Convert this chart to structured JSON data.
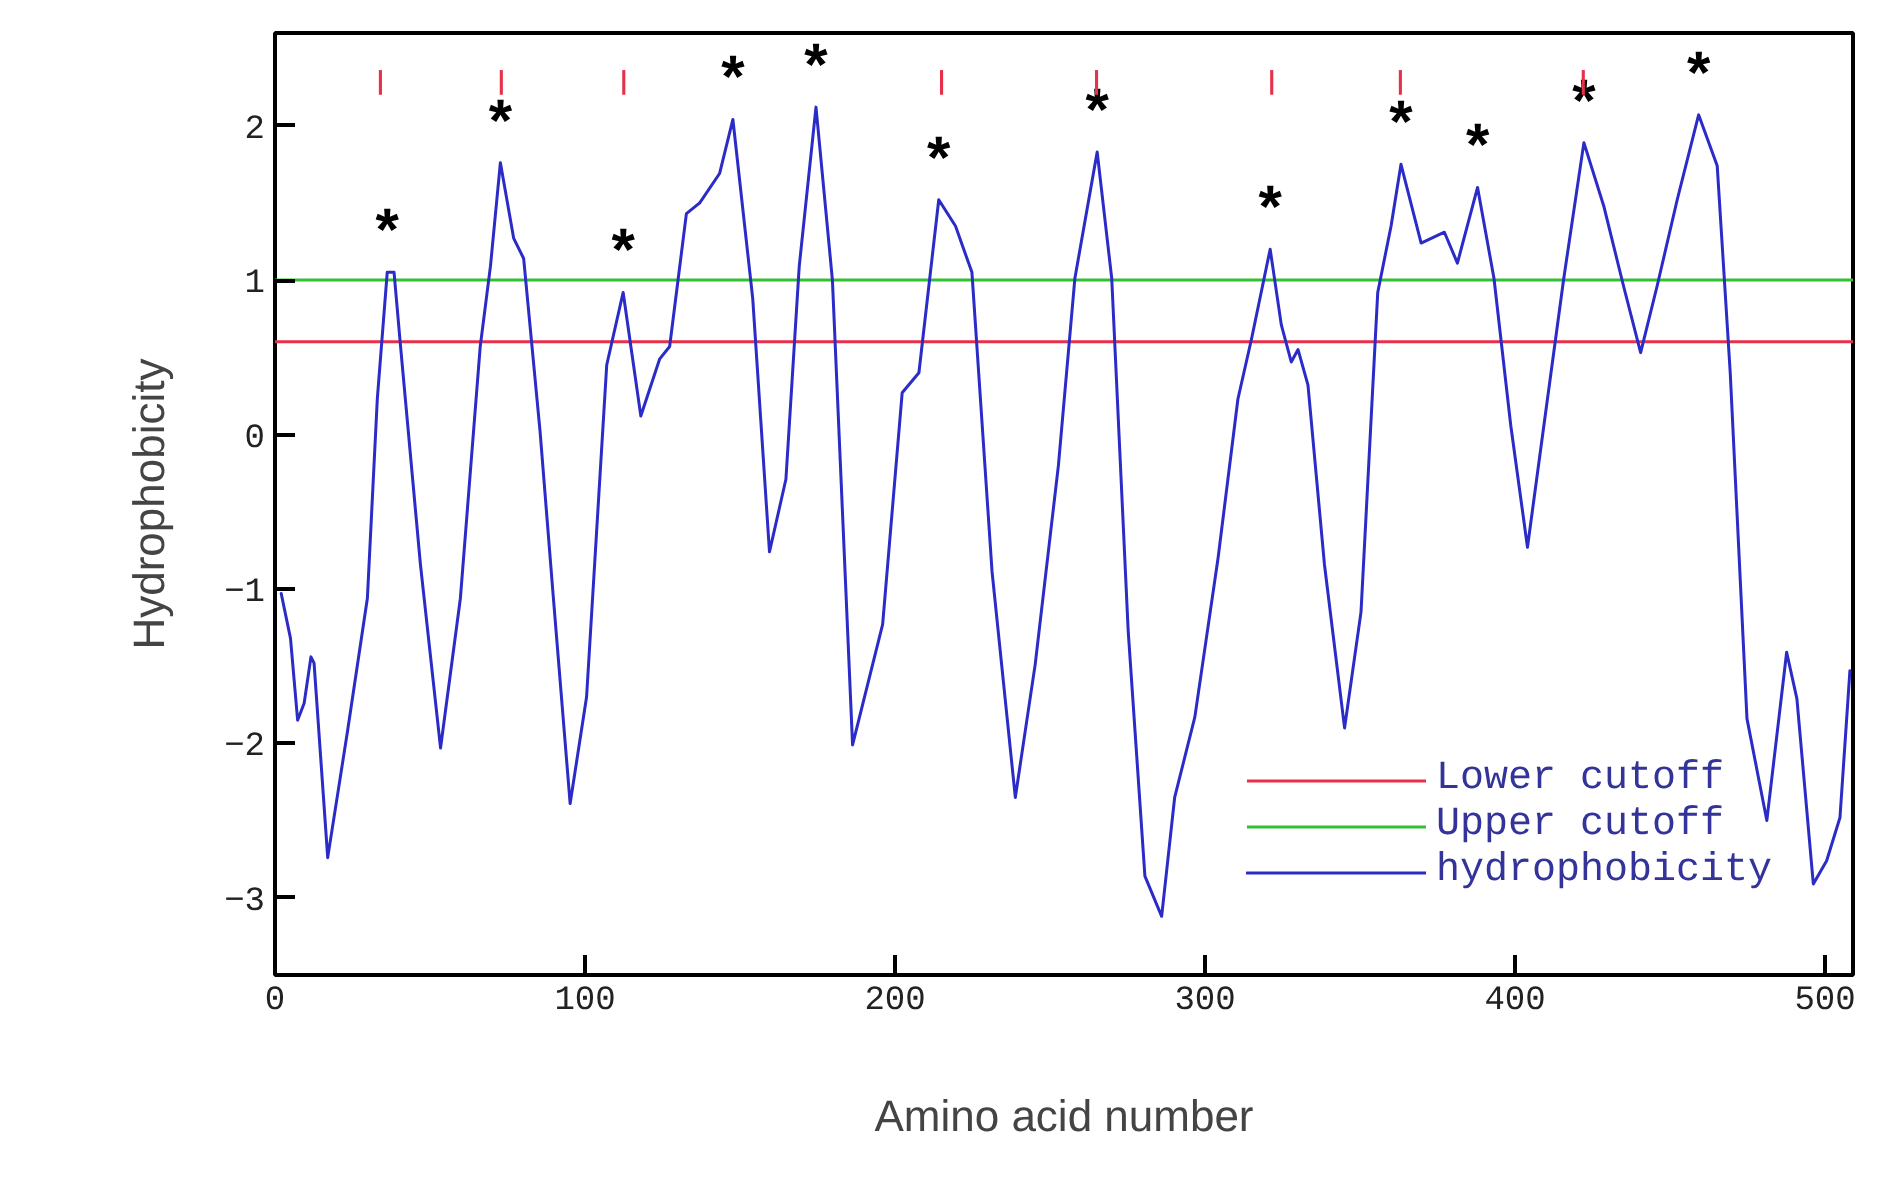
{
  "chart_data": {
    "type": "line",
    "xlabel": "Amino acid number",
    "ylabel": "Hydrophobicity",
    "xlim": [
      0,
      509
    ],
    "ylim": [
      -3.5,
      2.6
    ],
    "xticks": [
      0,
      100,
      200,
      300,
      400,
      500
    ],
    "yticks": [
      -3,
      -2,
      -1,
      0,
      1,
      2
    ],
    "grid": false,
    "legend": "bottom right",
    "line_style": "solid",
    "series": [
      {
        "name": "hydrophobicity",
        "color": "#2b2bc8",
        "x": [
          2,
          5,
          7.3,
          9.4,
          11.6,
          12.6,
          17,
          23.4,
          29.8,
          33,
          36.2,
          38.4,
          40.5,
          46.9,
          53.4,
          59.8,
          66.2,
          69.5,
          72.7,
          77,
          80.2,
          85.5,
          89.8,
          95.2,
          100.5,
          107,
          112.3,
          118,
          124.1,
          127.3,
          132.7,
          137,
          143.4,
          147.7,
          154.1,
          159.5,
          164.8,
          169.1,
          174.5,
          179.8,
          186.3,
          196,
          202.3,
          207.7,
          214.1,
          219.5,
          224.8,
          231.3,
          238.8,
          245.2,
          252.7,
          258,
          265.2,
          269.9,
          275.2,
          280.6,
          286,
          290.2,
          296.7,
          304.2,
          310.6,
          315,
          321,
          324.6,
          327.8,
          330,
          333.2,
          338.5,
          345,
          350.3,
          355.7,
          360,
          363.2,
          369.7,
          377.2,
          381.4,
          387.9,
          393.2,
          398.6,
          404,
          409.3,
          415.7,
          422.2,
          428.6,
          435,
          440.5,
          445.8,
          452.3,
          459.2,
          465.2,
          469.4,
          474.8,
          481.2,
          487.6,
          490.9,
          496.2,
          500.5,
          504.8,
          508
        ],
        "values": [
          -1.03,
          -1.32,
          -1.85,
          -1.74,
          -1.44,
          -1.48,
          -2.74,
          -1.92,
          -1.06,
          0.23,
          1.05,
          1.05,
          0.57,
          -0.84,
          -2.03,
          -1.06,
          0.57,
          1.09,
          1.76,
          1.27,
          1.14,
          0.02,
          -1.06,
          -2.39,
          -1.7,
          0.45,
          0.92,
          0.12,
          0.49,
          0.57,
          1.43,
          1.5,
          1.69,
          2.04,
          0.88,
          -0.76,
          -0.29,
          1.09,
          2.12,
          1.0,
          -2.01,
          -1.23,
          0.27,
          0.4,
          1.52,
          1.35,
          1.05,
          -0.89,
          -2.35,
          -1.49,
          -0.2,
          1.01,
          1.83,
          1.01,
          -1.27,
          -2.86,
          -3.12,
          -2.35,
          -1.83,
          -0.8,
          0.23,
          0.62,
          1.2,
          0.71,
          0.47,
          0.55,
          0.32,
          -0.84,
          -1.9,
          -1.15,
          0.92,
          1.35,
          1.75,
          1.24,
          1.31,
          1.11,
          1.6,
          1.01,
          0.06,
          -0.73,
          0.06,
          1.01,
          1.89,
          1.48,
          0.96,
          0.53,
          0.96,
          1.52,
          2.07,
          1.74,
          0.4,
          -1.84,
          -2.5,
          -1.41,
          -1.71,
          -2.91,
          -2.76,
          -2.48,
          -1.53
        ]
      },
      {
        "color": "#e8304a",
        "type": "bar",
        "x": [
          34,
          73,
          112.5,
          215,
          265,
          321.5,
          363,
          422
        ],
        "base": [
          2.2,
          2.2,
          2.2,
          2.2,
          2.2,
          2.2,
          2.2,
          2.2
        ],
        "values": [
          0.16,
          0.16,
          0.16,
          0.16,
          0.16,
          0.16,
          0.16,
          0.16
        ]
      }
    ],
    "ref_lines": [
      {
        "axis": "y",
        "value": 0.6,
        "label": "Lower cutoff",
        "color": "#e8304a",
        "line_style": "solid"
      },
      {
        "axis": "y",
        "value": 1.0,
        "label": "Upper cutoff",
        "color": "#33c033",
        "line_style": "solid"
      }
    ],
    "annotations": [
      {
        "text": "*",
        "x": 36.2,
        "y": 1.05
      },
      {
        "text": "*",
        "x": 72.7,
        "y": 1.76
      },
      {
        "text": "*",
        "x": 112.3,
        "y": 0.92
      },
      {
        "text": "*",
        "x": 147.7,
        "y": 2.04
      },
      {
        "text": "*",
        "x": 174.5,
        "y": 2.12
      },
      {
        "text": "*",
        "x": 214.1,
        "y": 1.52
      },
      {
        "text": "*",
        "x": 265.2,
        "y": 1.83
      },
      {
        "text": "*",
        "x": 321,
        "y": 1.2
      },
      {
        "text": "*",
        "x": 363.2,
        "y": 1.75
      },
      {
        "text": "*",
        "x": 387.9,
        "y": 1.6
      },
      {
        "text": "*",
        "x": 422.2,
        "y": 1.89
      },
      {
        "text": "*",
        "x": 459.2,
        "y": 2.07
      }
    ]
  }
}
